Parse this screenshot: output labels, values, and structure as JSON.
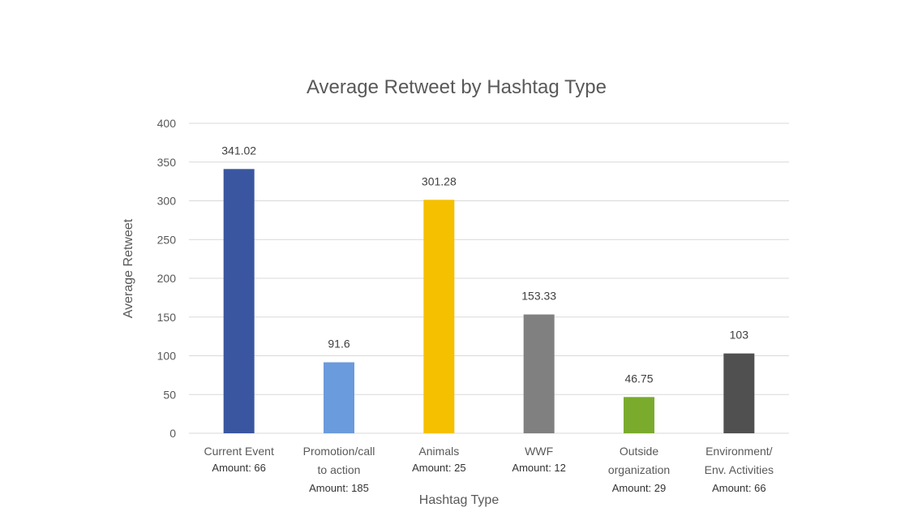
{
  "chart_data": {
    "type": "bar",
    "title": "Average Retweet by Hashtag Type",
    "xlabel": "Hashtag Type",
    "ylabel": "Average Retweet",
    "ylim": [
      0,
      400
    ],
    "yticks": [
      0,
      50,
      100,
      150,
      200,
      250,
      300,
      350,
      400
    ],
    "grid": true,
    "legend": "none",
    "categories": [
      {
        "label_lines": [
          "Current Event"
        ],
        "amount": "Amount: 66"
      },
      {
        "label_lines": [
          "Promotion/call",
          "to action"
        ],
        "amount": "Amount: 185"
      },
      {
        "label_lines": [
          "Animals"
        ],
        "amount": "Amount: 25"
      },
      {
        "label_lines": [
          "WWF"
        ],
        "amount": "Amount: 12"
      },
      {
        "label_lines": [
          "Outside",
          "organization"
        ],
        "amount": "Amount: 29"
      },
      {
        "label_lines": [
          "Environment/",
          "Env. Activities"
        ],
        "amount": "Amount: 66"
      }
    ],
    "values": [
      341.02,
      91.6,
      301.28,
      153.33,
      46.75,
      103
    ],
    "data_labels": [
      "341.02",
      "91.6",
      "301.28",
      "153.33",
      "46.75",
      "103"
    ],
    "colors": [
      "#3a56a0",
      "#6a9bdc",
      "#f4c000",
      "#808080",
      "#7aab2d",
      "#505050"
    ]
  }
}
